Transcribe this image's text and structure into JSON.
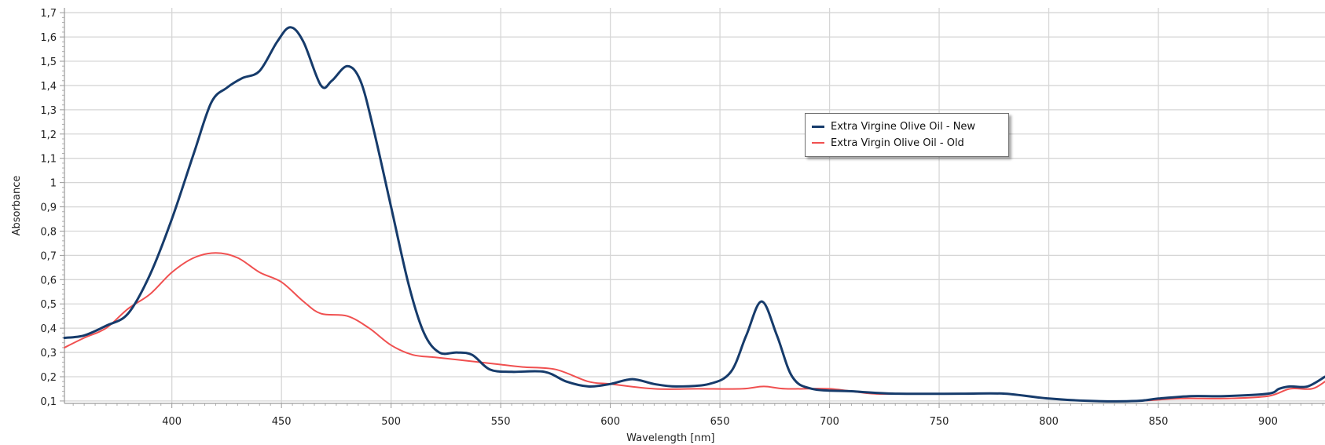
{
  "chart_data": {
    "type": "line",
    "xlabel": "Wavelength [nm]",
    "ylabel": "Absorbance",
    "xlim": [
      351,
      926
    ],
    "ylim": [
      0.09,
      1.72
    ],
    "x_ticks": [
      400,
      450,
      500,
      550,
      600,
      650,
      700,
      750,
      800,
      850,
      900
    ],
    "y_ticks": [
      "0,1",
      "0,2",
      "0,3",
      "0,4",
      "0,5",
      "0,6",
      "0,7",
      "0,8",
      "0,9",
      "1",
      "1,1",
      "1,2",
      "1,3",
      "1,4",
      "1,5",
      "1,6",
      "1,7"
    ],
    "grid": true,
    "legend_position": "center-right",
    "series": [
      {
        "name": "Extra Virgine Olive Oil - New",
        "color": "#163b6b",
        "points": [
          [
            351,
            0.36
          ],
          [
            360,
            0.37
          ],
          [
            370,
            0.41
          ],
          [
            380,
            0.46
          ],
          [
            390,
            0.62
          ],
          [
            400,
            0.85
          ],
          [
            410,
            1.12
          ],
          [
            418,
            1.33
          ],
          [
            425,
            1.39
          ],
          [
            432,
            1.43
          ],
          [
            440,
            1.46
          ],
          [
            448,
            1.58
          ],
          [
            454,
            1.64
          ],
          [
            460,
            1.58
          ],
          [
            468,
            1.4
          ],
          [
            473,
            1.42
          ],
          [
            480,
            1.48
          ],
          [
            486,
            1.42
          ],
          [
            492,
            1.22
          ],
          [
            500,
            0.9
          ],
          [
            508,
            0.58
          ],
          [
            515,
            0.38
          ],
          [
            522,
            0.3
          ],
          [
            530,
            0.3
          ],
          [
            537,
            0.29
          ],
          [
            545,
            0.23
          ],
          [
            555,
            0.22
          ],
          [
            570,
            0.22
          ],
          [
            580,
            0.18
          ],
          [
            590,
            0.16
          ],
          [
            600,
            0.17
          ],
          [
            610,
            0.19
          ],
          [
            620,
            0.17
          ],
          [
            630,
            0.16
          ],
          [
            645,
            0.17
          ],
          [
            655,
            0.22
          ],
          [
            662,
            0.37
          ],
          [
            669,
            0.51
          ],
          [
            676,
            0.37
          ],
          [
            683,
            0.2
          ],
          [
            692,
            0.15
          ],
          [
            710,
            0.14
          ],
          [
            730,
            0.13
          ],
          [
            760,
            0.13
          ],
          [
            780,
            0.13
          ],
          [
            800,
            0.11
          ],
          [
            820,
            0.1
          ],
          [
            840,
            0.1
          ],
          [
            850,
            0.11
          ],
          [
            865,
            0.12
          ],
          [
            880,
            0.12
          ],
          [
            900,
            0.13
          ],
          [
            905,
            0.15
          ],
          [
            910,
            0.16
          ],
          [
            918,
            0.16
          ],
          [
            926,
            0.2
          ]
        ]
      },
      {
        "name": "Extra Virgin Olive Oil - Old",
        "color": "#f05050",
        "points": [
          [
            351,
            0.32
          ],
          [
            360,
            0.36
          ],
          [
            370,
            0.4
          ],
          [
            380,
            0.48
          ],
          [
            390,
            0.54
          ],
          [
            400,
            0.63
          ],
          [
            410,
            0.69
          ],
          [
            420,
            0.71
          ],
          [
            430,
            0.69
          ],
          [
            440,
            0.63
          ],
          [
            450,
            0.59
          ],
          [
            460,
            0.51
          ],
          [
            468,
            0.46
          ],
          [
            480,
            0.45
          ],
          [
            490,
            0.4
          ],
          [
            500,
            0.33
          ],
          [
            510,
            0.29
          ],
          [
            520,
            0.28
          ],
          [
            530,
            0.27
          ],
          [
            540,
            0.26
          ],
          [
            550,
            0.25
          ],
          [
            560,
            0.24
          ],
          [
            575,
            0.23
          ],
          [
            590,
            0.18
          ],
          [
            600,
            0.17
          ],
          [
            620,
            0.15
          ],
          [
            640,
            0.15
          ],
          [
            660,
            0.15
          ],
          [
            670,
            0.16
          ],
          [
            680,
            0.15
          ],
          [
            700,
            0.15
          ],
          [
            720,
            0.13
          ],
          [
            740,
            0.13
          ],
          [
            760,
            0.13
          ],
          [
            780,
            0.13
          ],
          [
            800,
            0.11
          ],
          [
            820,
            0.1
          ],
          [
            840,
            0.1
          ],
          [
            860,
            0.11
          ],
          [
            880,
            0.11
          ],
          [
            900,
            0.12
          ],
          [
            910,
            0.15
          ],
          [
            920,
            0.15
          ],
          [
            926,
            0.18
          ]
        ]
      }
    ]
  }
}
